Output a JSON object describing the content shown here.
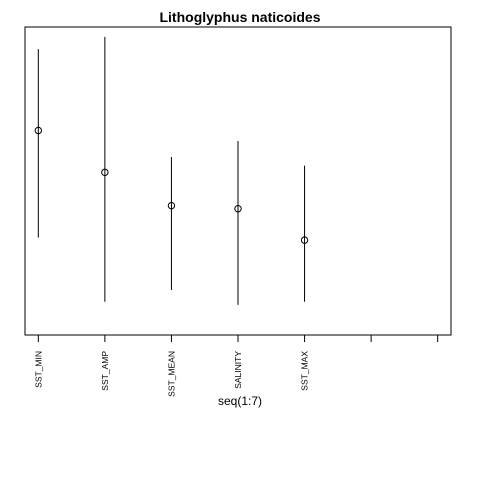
{
  "chart_data": {
    "type": "scatter",
    "title": "Lithoglyphus naticoides",
    "xlabel": "seq(1:7)",
    "ylabel": "",
    "xlim": [
      0.8,
      7.2
    ],
    "ylim": [
      0,
      100
    ],
    "grid": false,
    "x_ticks": [
      1,
      2,
      3,
      4,
      5,
      6,
      7
    ],
    "x_tick_labels": [
      "SST_MIN",
      "SST_AMP",
      "SST_MEAN",
      "SALINITY",
      "SST_MAX",
      "",
      ""
    ],
    "series": [
      {
        "points": [
          {
            "x": 1,
            "y": 66.4,
            "low": 31.6,
            "high": 92.8
          },
          {
            "x": 2,
            "y": 52.8,
            "low": 10.8,
            "high": 96.8
          },
          {
            "x": 3,
            "y": 42.0,
            "low": 14.6,
            "high": 57.8
          },
          {
            "x": 4,
            "y": 41.0,
            "low": 9.8,
            "high": 63.0
          },
          {
            "x": 5,
            "y": 30.8,
            "low": 10.8,
            "high": 55.0
          }
        ]
      }
    ]
  }
}
